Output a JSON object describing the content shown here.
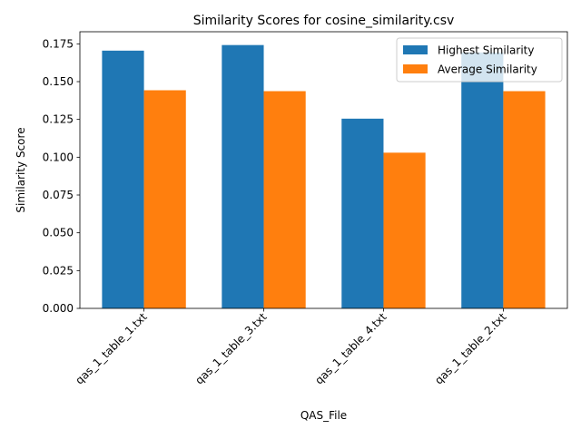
{
  "chart_data": {
    "type": "bar",
    "title": "Similarity Scores for cosine_similarity.csv",
    "xlabel": "QAS_File",
    "ylabel": "Similarity Score",
    "categories": [
      "qas_1_table_1.txt",
      "qas_1_table_3.txt",
      "qas_1_table_4.txt",
      "qas_1_table_2.txt"
    ],
    "series": [
      {
        "name": "Highest Similarity",
        "values": [
          0.1705,
          0.1742,
          0.1255,
          0.1693
        ],
        "color": "#1f77b4"
      },
      {
        "name": "Average Similarity",
        "values": [
          0.1443,
          0.1437,
          0.103,
          0.1437
        ],
        "color": "#ff7f0e"
      }
    ],
    "yticks": [
      "0.000",
      "0.025",
      "0.050",
      "0.075",
      "0.100",
      "0.125",
      "0.150",
      "0.175"
    ],
    "ylim": [
      0,
      0.183
    ],
    "grid": false,
    "legend_position": "top-right"
  }
}
